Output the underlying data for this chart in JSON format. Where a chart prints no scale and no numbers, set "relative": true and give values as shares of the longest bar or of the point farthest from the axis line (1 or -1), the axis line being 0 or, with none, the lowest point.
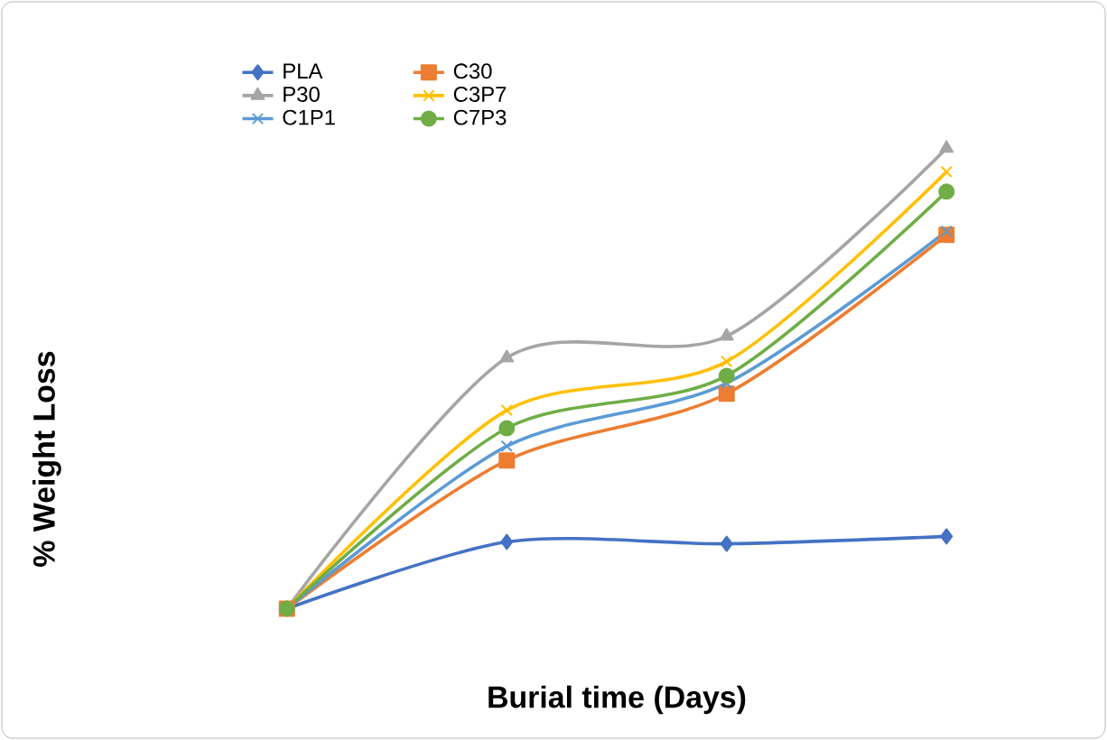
{
  "chart_data": {
    "type": "line",
    "xlabel": "Burial time (Days)",
    "ylabel": "% Weight Loss",
    "relative": true,
    "categories": [
      null,
      null,
      null,
      null
    ],
    "legend": "top left",
    "grid": false,
    "line_style": "solid",
    "series": [
      {
        "name": "PLA",
        "color": "#4472c4",
        "marker": "diamond",
        "values": [
          0,
          0.145,
          0.141,
          0.157
        ]
      },
      {
        "name": "C30",
        "color": "#ed7d31",
        "marker": "square",
        "values": [
          0,
          0.322,
          0.467,
          0.812
        ]
      },
      {
        "name": "P30",
        "color": "#a5a5a5",
        "marker": "triangle",
        "values": [
          0,
          0.545,
          0.592,
          1
        ]
      },
      {
        "name": "C3P7",
        "color": "#ffc000",
        "marker": "cross",
        "values": [
          0,
          0.431,
          0.537,
          0.949
        ]
      },
      {
        "name": "C1P1",
        "color": "#5b9bd5",
        "marker": "cross",
        "values": [
          0,
          0.353,
          0.49,
          0.82
        ]
      },
      {
        "name": "C7P3",
        "color": "#70ad47",
        "marker": "circle",
        "values": [
          0,
          0.392,
          0.506,
          0.906
        ]
      }
    ]
  }
}
